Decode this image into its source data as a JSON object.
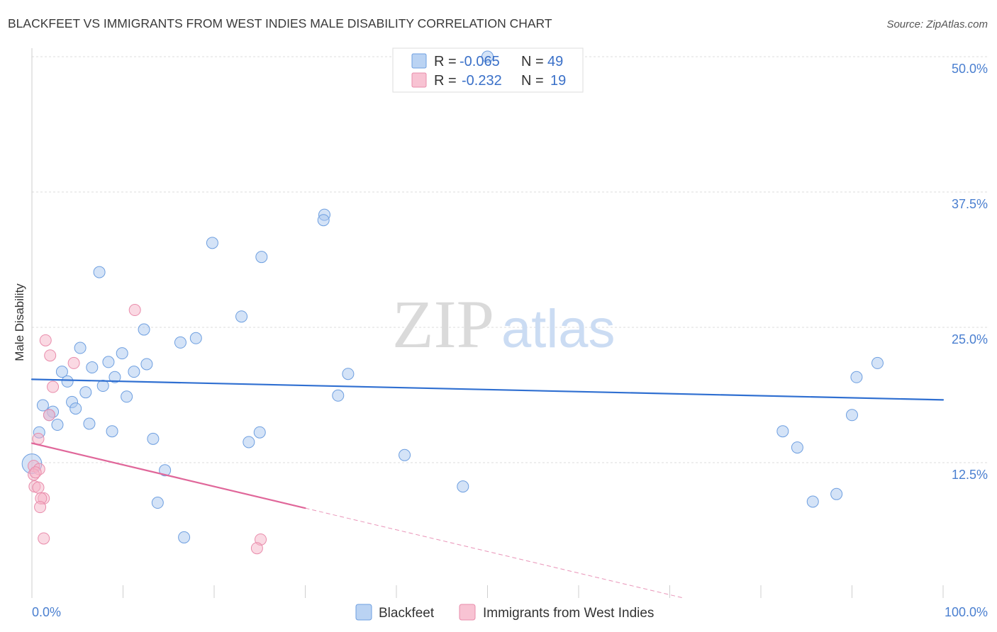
{
  "source": "Source: ZipAtlas.com",
  "watermark": {
    "zip": "ZIP",
    "atlas": "atlas"
  },
  "colors": {
    "blackfeet_fill": "#a9c8f0",
    "blackfeet_stroke": "#6e9fe0",
    "blackfeet_line": "#2f6fd1",
    "west_indies_fill": "#f6b4c8",
    "west_indies_stroke": "#e98cab",
    "west_indies_line": "#e0679a",
    "tick_label": "#4a7fd0"
  },
  "legend_top": {
    "rows": [
      {
        "r_label": "R =",
        "r_value": "-0.065",
        "n_label": "N =",
        "n_value": "49"
      },
      {
        "r_label": "R =",
        "r_value": "-0.232",
        "n_label": "N =",
        "n_value": "19"
      }
    ]
  },
  "chart_data": {
    "type": "scatter",
    "title": "BLACKFEET VS IMMIGRANTS FROM WEST INDIES MALE DISABILITY CORRELATION CHART",
    "xlabel": "",
    "ylabel": "Male Disability",
    "xlim": [
      0,
      100
    ],
    "ylim": [
      0,
      50
    ],
    "grid": true,
    "x_tick_values": [
      0,
      10,
      20,
      30,
      40,
      50,
      60,
      70,
      80,
      90,
      100
    ],
    "x_tick_labels": [
      {
        "value": 0,
        "label": "0.0%"
      },
      {
        "value": 100,
        "label": "100.0%"
      }
    ],
    "y_ticks": [
      {
        "value": 50,
        "label": "50.0%"
      },
      {
        "value": 37.5,
        "label": "37.5%"
      },
      {
        "value": 25,
        "label": "25.0%"
      },
      {
        "value": 12.5,
        "label": "12.5%"
      }
    ],
    "series": [
      {
        "name": "Blackfeet",
        "r": -0.065,
        "n": 49,
        "points": [
          [
            50.0,
            50.0
          ],
          [
            32.1,
            35.4
          ],
          [
            32.0,
            34.9
          ],
          [
            19.8,
            32.8
          ],
          [
            25.2,
            31.5
          ],
          [
            7.4,
            30.1
          ],
          [
            23.0,
            26.0
          ],
          [
            12.3,
            24.8
          ],
          [
            18.0,
            24.0
          ],
          [
            16.3,
            23.6
          ],
          [
            5.3,
            23.1
          ],
          [
            9.9,
            22.6
          ],
          [
            8.4,
            21.8
          ],
          [
            12.6,
            21.6
          ],
          [
            6.6,
            21.3
          ],
          [
            3.3,
            20.9
          ],
          [
            11.2,
            20.9
          ],
          [
            34.7,
            20.7
          ],
          [
            9.1,
            20.4
          ],
          [
            3.9,
            20.0
          ],
          [
            7.8,
            19.6
          ],
          [
            5.9,
            19.0
          ],
          [
            10.4,
            18.6
          ],
          [
            33.6,
            18.7
          ],
          [
            4.4,
            18.1
          ],
          [
            1.2,
            17.8
          ],
          [
            4.8,
            17.5
          ],
          [
            2.3,
            17.2
          ],
          [
            1.9,
            16.9
          ],
          [
            2.8,
            16.0
          ],
          [
            6.3,
            16.1
          ],
          [
            0.8,
            15.3
          ],
          [
            8.8,
            15.4
          ],
          [
            25.0,
            15.3
          ],
          [
            13.3,
            14.7
          ],
          [
            23.8,
            14.4
          ],
          [
            40.9,
            13.2
          ],
          [
            14.6,
            11.8
          ],
          [
            47.3,
            10.3
          ],
          [
            13.8,
            8.8
          ],
          [
            16.7,
            5.6
          ],
          [
            92.8,
            21.7
          ],
          [
            90.5,
            20.4
          ],
          [
            90.0,
            16.9
          ],
          [
            82.4,
            15.4
          ],
          [
            84.0,
            13.9
          ],
          [
            88.3,
            9.6
          ],
          [
            85.7,
            8.9
          ]
        ],
        "weighted_points": [
          {
            "x": 0.0,
            "y": 12.4,
            "weight": 3
          }
        ],
        "trend": {
          "x": [
            0,
            100
          ],
          "y": [
            20.2,
            18.3
          ]
        }
      },
      {
        "name": "Immigrants from West Indies",
        "r": -0.232,
        "n": 19,
        "points": [
          [
            11.3,
            26.6
          ],
          [
            1.5,
            23.8
          ],
          [
            2.0,
            22.4
          ],
          [
            4.6,
            21.7
          ],
          [
            2.3,
            19.5
          ],
          [
            1.9,
            16.9
          ],
          [
            0.7,
            14.7
          ],
          [
            0.2,
            12.2
          ],
          [
            0.8,
            11.9
          ],
          [
            0.2,
            11.4
          ],
          [
            0.4,
            11.6
          ],
          [
            0.3,
            10.3
          ],
          [
            0.7,
            10.2
          ],
          [
            1.3,
            9.2
          ],
          [
            1.0,
            9.2
          ],
          [
            0.9,
            8.4
          ],
          [
            1.3,
            5.5
          ],
          [
            25.1,
            5.4
          ],
          [
            24.7,
            4.6
          ]
        ],
        "trend": {
          "x": [
            0,
            30
          ],
          "y": [
            14.3,
            8.3
          ]
        },
        "trend_extension": {
          "x": [
            30,
            71.5
          ],
          "y": [
            8.3,
            0
          ]
        }
      }
    ]
  }
}
